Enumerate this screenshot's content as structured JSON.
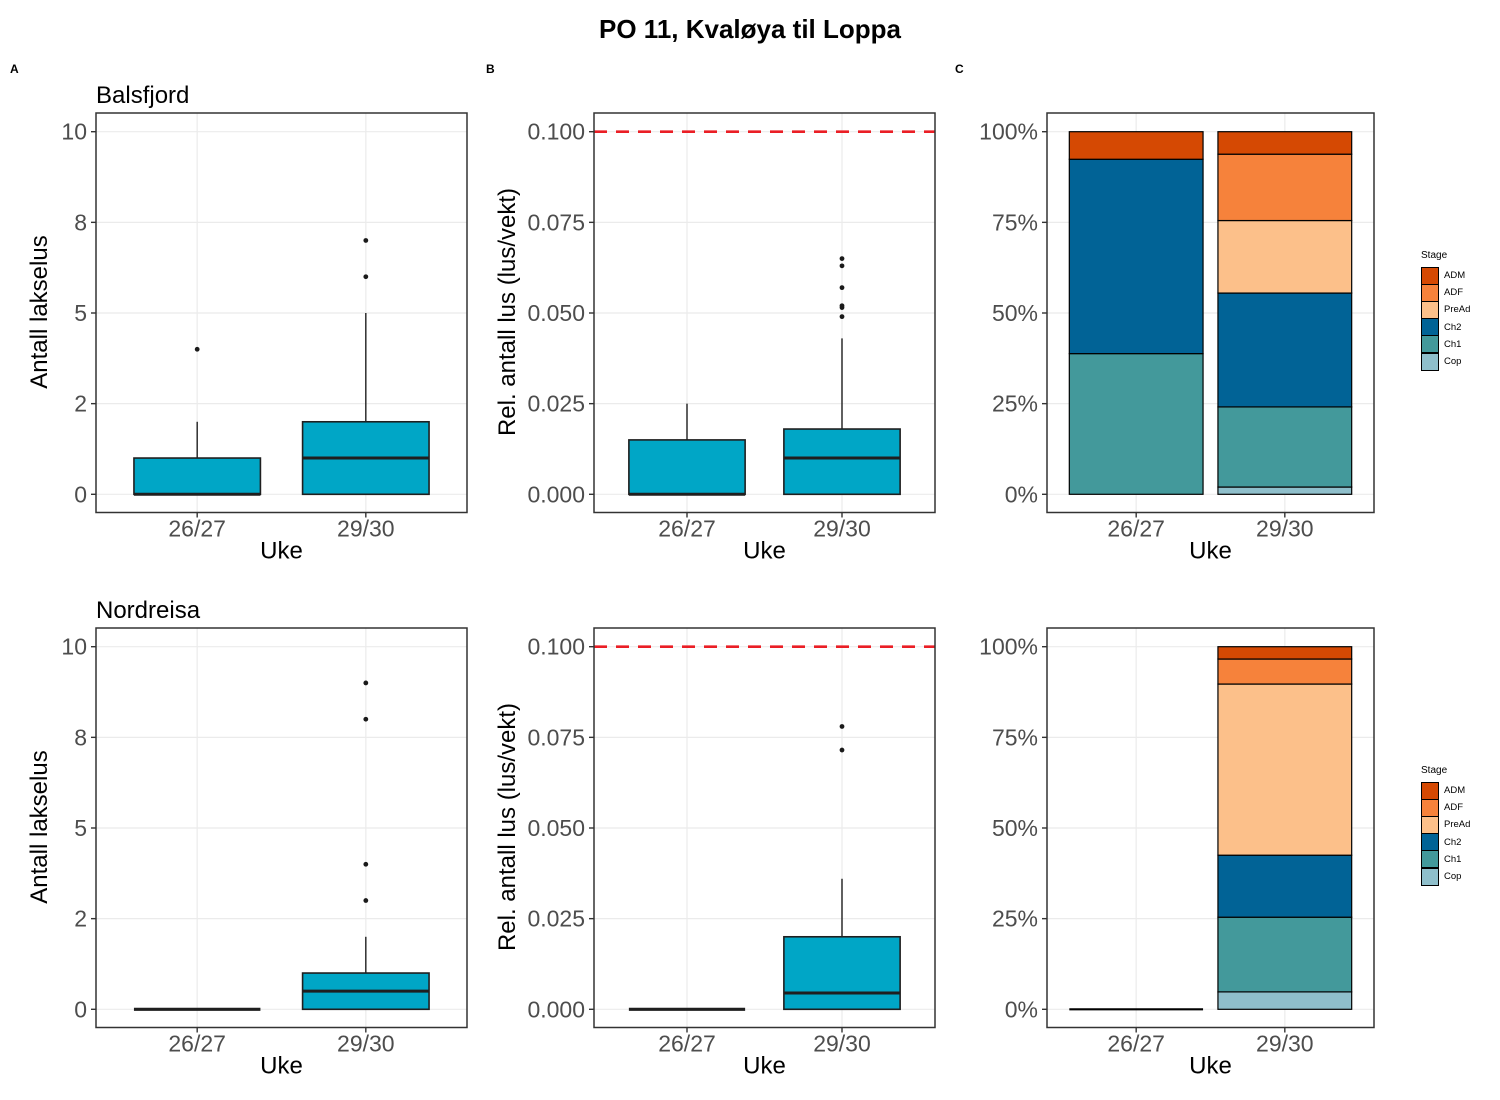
{
  "title": "PO 11, Kvaløya til Loppa",
  "panel_tags": [
    "A",
    "B",
    "C"
  ],
  "x_label": "Uke",
  "x_categories": [
    "26/27",
    "29/30"
  ],
  "regions": [
    "Balsfjord",
    "Nordreisa"
  ],
  "ylabels": {
    "count": "Antall lakselus",
    "rel": "Rel. antall lus (lus/vekt)"
  },
  "legend": {
    "title": "Stage",
    "items": [
      {
        "label": "ADM",
        "color": "#D54903"
      },
      {
        "label": "ADF",
        "color": "#F6823B"
      },
      {
        "label": "PreAd",
        "color": "#FCC08A"
      },
      {
        "label": "Ch2",
        "color": "#016396"
      },
      {
        "label": "Ch1",
        "color": "#43999B"
      },
      {
        "label": "Cop",
        "color": "#8FBFCB"
      }
    ]
  },
  "colors": {
    "box_fill": "#00A6C6",
    "box_border": "#1F1F1F",
    "median": "#1F1F1F",
    "outlier": "#1A1A1A",
    "ref_line": "#EA1E25",
    "grid": "#EBEBEB",
    "panel_border": "#333333",
    "tick_text": "#4D4D4D",
    "axis_title_text": "#000000"
  },
  "chart_data": [
    {
      "type": "box",
      "panel": "A",
      "region": "Balsfjord",
      "title": "Balsfjord",
      "xlabel": "Uke",
      "ylabel": "Antall lakselus",
      "categories": [
        "26/27",
        "29/30"
      ],
      "y_ticks": [
        0,
        2,
        5,
        8,
        10
      ],
      "y_tick_labels": [
        "0",
        "2",
        "5",
        "8",
        "10"
      ],
      "boxes": [
        {
          "category": "26/27",
          "q1": 0,
          "median": 0,
          "q3": 0.8,
          "whisker_low": 0,
          "whisker_high": 1.6,
          "outliers": [
            3.8
          ]
        },
        {
          "category": "29/30",
          "q1": 0,
          "median": 0.8,
          "q3": 1.6,
          "whisker_low": 0,
          "whisker_high": 5.0,
          "outliers": [
            6.2,
            7.4
          ]
        }
      ]
    },
    {
      "type": "box",
      "panel": "B",
      "region": "Balsfjord",
      "xlabel": "Uke",
      "ylabel": "Rel. antall lus (lus/vekt)",
      "categories": [
        "26/27",
        "29/30"
      ],
      "y_ticks": [
        0,
        0.025,
        0.05,
        0.075,
        0.1
      ],
      "y_tick_labels": [
        "0.000",
        "0.025",
        "0.050",
        "0.075",
        "0.100"
      ],
      "ref_line": 0.1,
      "boxes": [
        {
          "category": "26/27",
          "q1": 0,
          "median": 0,
          "q3": 0.015,
          "whisker_low": 0,
          "whisker_high": 0.025,
          "outliers": []
        },
        {
          "category": "29/30",
          "q1": 0,
          "median": 0.01,
          "q3": 0.018,
          "whisker_low": 0,
          "whisker_high": 0.043,
          "outliers": [
            0.049,
            0.0515,
            0.052,
            0.057,
            0.063,
            0.065
          ]
        }
      ]
    },
    {
      "type": "stacked_bar",
      "panel": "C",
      "region": "Balsfjord",
      "xlabel": "Uke",
      "categories": [
        "26/27",
        "29/30"
      ],
      "y_ticks": [
        0,
        25,
        50,
        75,
        100
      ],
      "y_tick_labels": [
        "0%",
        "25%",
        "50%",
        "75%",
        "100%"
      ],
      "stack_order": [
        "Cop",
        "Ch1",
        "Ch2",
        "PreAd",
        "ADF",
        "ADM"
      ],
      "bars": [
        {
          "category": "26/27",
          "values": {
            "Cop": 0,
            "Ch1": 38.8,
            "Ch2": 53.6,
            "PreAd": 0,
            "ADF": 0,
            "ADM": 7.6
          }
        },
        {
          "category": "29/30",
          "values": {
            "Cop": 2.0,
            "Ch1": 22.1,
            "Ch2": 31.4,
            "PreAd": 20.0,
            "ADF": 18.3,
            "ADM": 6.2
          }
        }
      ]
    },
    {
      "type": "box",
      "panel": "A",
      "region": "Nordreisa",
      "title": "Nordreisa",
      "xlabel": "Uke",
      "ylabel": "Antall lakselus",
      "categories": [
        "26/27",
        "29/30"
      ],
      "y_ticks": [
        0,
        2,
        5,
        8,
        10
      ],
      "y_tick_labels": [
        "0",
        "2",
        "5",
        "8",
        "10"
      ],
      "boxes": [
        {
          "category": "26/27",
          "q1": 0,
          "median": 0,
          "q3": 0,
          "whisker_low": 0,
          "whisker_high": 0,
          "outliers": []
        },
        {
          "category": "29/30",
          "q1": 0,
          "median": 0.4,
          "q3": 0.8,
          "whisker_low": 0,
          "whisker_high": 1.6,
          "outliers": [
            2.6,
            3.8,
            8.4,
            9.2
          ]
        }
      ]
    },
    {
      "type": "box",
      "panel": "B",
      "region": "Nordreisa",
      "xlabel": "Uke",
      "ylabel": "Rel. antall lus (lus/vekt)",
      "categories": [
        "26/27",
        "29/30"
      ],
      "y_ticks": [
        0,
        0.025,
        0.05,
        0.075,
        0.1
      ],
      "y_tick_labels": [
        "0.000",
        "0.025",
        "0.050",
        "0.075",
        "0.100"
      ],
      "ref_line": 0.1,
      "boxes": [
        {
          "category": "26/27",
          "q1": 0,
          "median": 0,
          "q3": 0,
          "whisker_low": 0,
          "whisker_high": 0,
          "outliers": []
        },
        {
          "category": "29/30",
          "q1": 0,
          "median": 0.0045,
          "q3": 0.02,
          "whisker_low": 0,
          "whisker_high": 0.036,
          "outliers": [
            0.0715,
            0.078
          ]
        }
      ]
    },
    {
      "type": "stacked_bar",
      "panel": "C",
      "region": "Nordreisa",
      "xlabel": "Uke",
      "categories": [
        "26/27",
        "29/30"
      ],
      "y_ticks": [
        0,
        25,
        50,
        75,
        100
      ],
      "y_tick_labels": [
        "0%",
        "25%",
        "50%",
        "75%",
        "100%"
      ],
      "stack_order": [
        "Cop",
        "Ch1",
        "Ch2",
        "PreAd",
        "ADF",
        "ADM"
      ],
      "bars": [
        {
          "category": "26/27",
          "values": {
            "Cop": 0,
            "Ch1": 0,
            "Ch2": 0,
            "PreAd": 0,
            "ADF": 0,
            "ADM": 0
          }
        },
        {
          "category": "29/30",
          "values": {
            "Cop": 4.8,
            "Ch1": 20.6,
            "Ch2": 17.1,
            "PreAd": 47.2,
            "ADF": 6.9,
            "ADM": 3.4
          }
        }
      ]
    }
  ]
}
